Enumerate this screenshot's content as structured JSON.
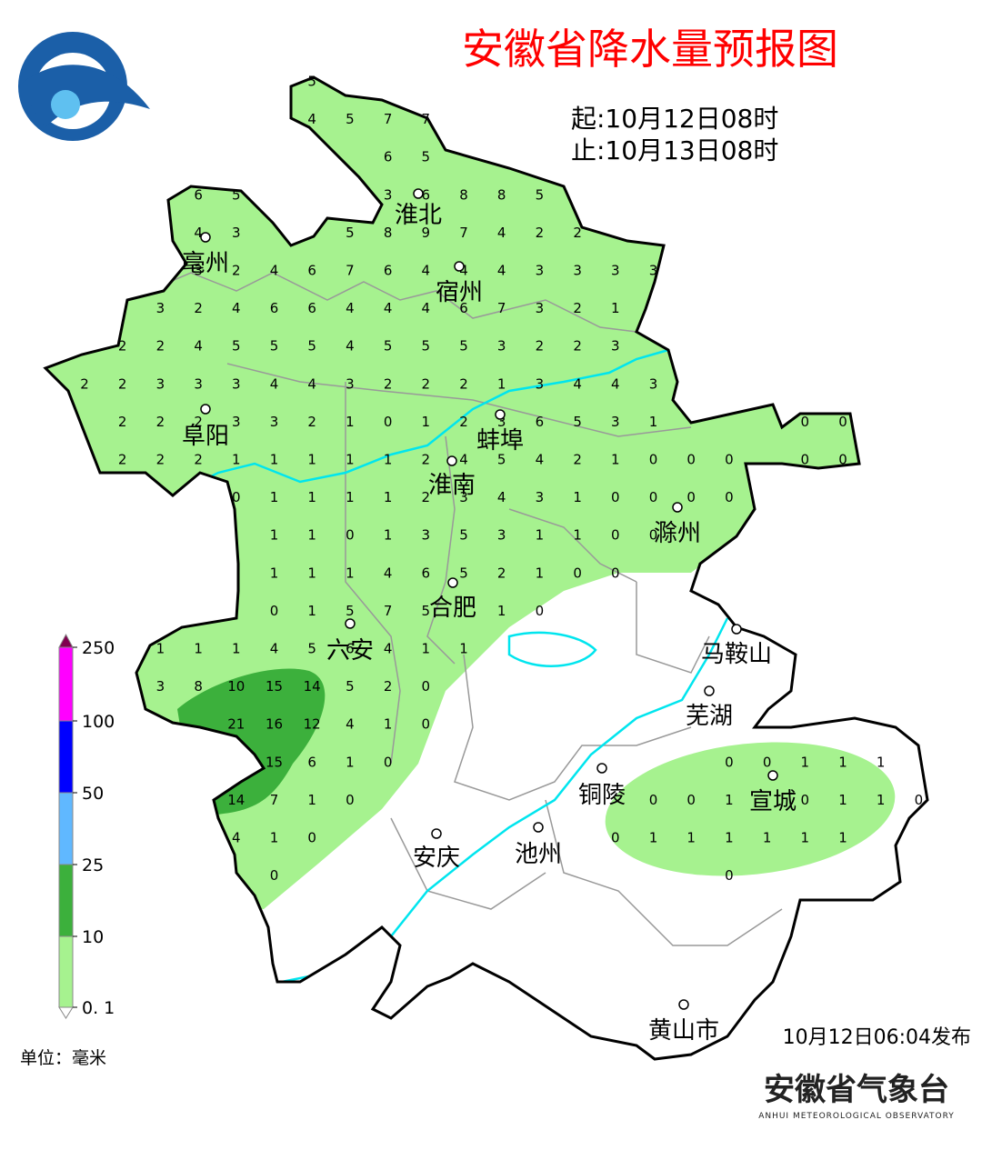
{
  "header": {
    "title": "安徽省降水量预报图",
    "start": "起:10月12日08时",
    "end": "止:10月13日08时"
  },
  "cities": [
    "淮北",
    "亳州",
    "宿州",
    "阜阳",
    "蚌埠",
    "淮南",
    "滁州",
    "合肥",
    "六安",
    "马鞍山",
    "芜湖",
    "铜陵",
    "宣城",
    "安庆",
    "池州",
    "黄山市"
  ],
  "grid_rows": [
    [
      null,
      null,
      null,
      null,
      null,
      null,
      5,
      null,
      null,
      null,
      null,
      null,
      null,
      null,
      null,
      null,
      null,
      null,
      null,
      null,
      null,
      null,
      null
    ],
    [
      null,
      null,
      null,
      null,
      null,
      null,
      4,
      5,
      7,
      7,
      null,
      null,
      null,
      null,
      null,
      null,
      null,
      null,
      null,
      null,
      null,
      null,
      null
    ],
    [
      null,
      null,
      null,
      null,
      null,
      null,
      null,
      null,
      6,
      5,
      null,
      null,
      null,
      null,
      null,
      null,
      null,
      null,
      null,
      null,
      null,
      null,
      null
    ],
    [
      null,
      null,
      null,
      6,
      5,
      null,
      null,
      null,
      3,
      6,
      8,
      8,
      5,
      null,
      null,
      null,
      null,
      null,
      null,
      null,
      null,
      null,
      null
    ],
    [
      null,
      null,
      null,
      4,
      3,
      null,
      null,
      5,
      8,
      9,
      7,
      4,
      2,
      2,
      null,
      null,
      null,
      null,
      null,
      null,
      null,
      null,
      null
    ],
    [
      null,
      null,
      null,
      3,
      2,
      4,
      6,
      7,
      6,
      4,
      4,
      4,
      3,
      3,
      3,
      3,
      null,
      null,
      null,
      null,
      null,
      null,
      null
    ],
    [
      null,
      null,
      3,
      2,
      4,
      6,
      6,
      4,
      4,
      4,
      6,
      7,
      3,
      2,
      1,
      null,
      null,
      null,
      null,
      null,
      null,
      null,
      null
    ],
    [
      null,
      2,
      2,
      4,
      5,
      5,
      5,
      4,
      5,
      5,
      5,
      3,
      2,
      2,
      3,
      null,
      null,
      null,
      null,
      null,
      null,
      null,
      null
    ],
    [
      2,
      2,
      3,
      3,
      3,
      4,
      4,
      3,
      2,
      2,
      2,
      1,
      3,
      4,
      4,
      3,
      null,
      null,
      null,
      null,
      null,
      null,
      null
    ],
    [
      null,
      2,
      2,
      2,
      3,
      3,
      2,
      1,
      0,
      1,
      2,
      3,
      6,
      5,
      3,
      1,
      null,
      null,
      null,
      0,
      0,
      null,
      null
    ],
    [
      null,
      2,
      2,
      2,
      1,
      1,
      1,
      1,
      1,
      2,
      4,
      5,
      4,
      2,
      1,
      0,
      0,
      0,
      null,
      0,
      0,
      null,
      null
    ],
    [
      null,
      null,
      null,
      null,
      0,
      1,
      1,
      1,
      1,
      2,
      3,
      4,
      3,
      1,
      0,
      0,
      0,
      0,
      null,
      null,
      null,
      null,
      null
    ],
    [
      null,
      null,
      null,
      null,
      null,
      1,
      1,
      0,
      1,
      3,
      5,
      3,
      1,
      1,
      0,
      0,
      null,
      null,
      null,
      null,
      null,
      null,
      null
    ],
    [
      null,
      null,
      null,
      null,
      null,
      1,
      1,
      1,
      4,
      6,
      5,
      2,
      1,
      0,
      0,
      null,
      null,
      null,
      null,
      null,
      null,
      null,
      null
    ],
    [
      null,
      null,
      null,
      null,
      null,
      0,
      1,
      5,
      7,
      5,
      null,
      1,
      0,
      null,
      null,
      null,
      null,
      null,
      null,
      null,
      null,
      null,
      null
    ],
    [
      null,
      null,
      1,
      1,
      1,
      4,
      5,
      6,
      4,
      1,
      1,
      null,
      null,
      null,
      null,
      null,
      null,
      null,
      null,
      null,
      null,
      null,
      null
    ],
    [
      null,
      null,
      3,
      8,
      10,
      15,
      14,
      5,
      2,
      0,
      null,
      null,
      null,
      null,
      null,
      null,
      null,
      null,
      null,
      null,
      null,
      null,
      null
    ],
    [
      null,
      null,
      null,
      null,
      21,
      16,
      12,
      4,
      1,
      0,
      null,
      null,
      null,
      null,
      null,
      null,
      null,
      null,
      null,
      null,
      null,
      null,
      null
    ],
    [
      null,
      null,
      null,
      null,
      null,
      15,
      6,
      1,
      0,
      null,
      null,
      null,
      null,
      null,
      null,
      null,
      null,
      0,
      0,
      1,
      1,
      1,
      null
    ],
    [
      null,
      null,
      null,
      null,
      14,
      7,
      1,
      0,
      null,
      null,
      null,
      null,
      null,
      null,
      null,
      0,
      0,
      1,
      null,
      0,
      1,
      1,
      0
    ],
    [
      null,
      null,
      null,
      null,
      4,
      1,
      0,
      null,
      null,
      null,
      null,
      null,
      null,
      null,
      0,
      1,
      1,
      1,
      1,
      1,
      1,
      null,
      null
    ],
    [
      null,
      null,
      null,
      null,
      null,
      0,
      null,
      null,
      null,
      null,
      null,
      null,
      null,
      null,
      null,
      null,
      null,
      0,
      null,
      null,
      null,
      null,
      null
    ]
  ],
  "legend": {
    "ticks": [
      {
        "value": 250,
        "label": "250"
      },
      {
        "value": 100,
        "label": "100"
      },
      {
        "value": 50,
        "label": "50"
      },
      {
        "value": 25,
        "label": "25"
      },
      {
        "value": 10,
        "label": "10"
      },
      {
        "value": 0.1,
        "label": "0. 1"
      }
    ],
    "colors": [
      "#ff00ff",
      "#0000ff",
      "#60b8ff",
      "#3cb03c",
      "#a6f28f"
    ],
    "top_color": "#800050",
    "unit": "单位：毫米"
  },
  "footer": {
    "issued": "10月12日06:04发布",
    "org": "安徽省气象台",
    "org_en": "ANHUI METEOROLOGICAL OBSERVATORY"
  }
}
